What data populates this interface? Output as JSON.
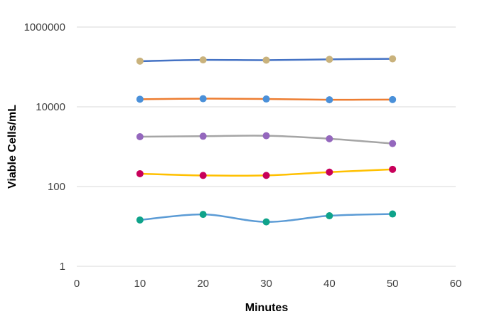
{
  "chart_data": {
    "type": "line",
    "title": "",
    "xlabel": "Minutes",
    "ylabel": "Viable Cells/mL",
    "xlim": [
      0,
      60
    ],
    "xticks": [
      0,
      10,
      20,
      30,
      40,
      50,
      60
    ],
    "xtick_labels": [
      "0",
      "10",
      "20",
      "30",
      "40",
      "50",
      "60"
    ],
    "ylim": [
      1,
      1000000
    ],
    "yscale": "log",
    "yticks": [
      1,
      100,
      10000,
      1000000
    ],
    "ytick_labels": [
      "1",
      "100",
      "10000",
      "1000000"
    ],
    "grid": "horizontal",
    "legend": "none",
    "x": [
      10,
      20,
      30,
      40,
      50
    ],
    "series": [
      {
        "line_color": "#4472C4",
        "marker_color": "#C9B27C",
        "values": [
          140000,
          150000,
          148000,
          155000,
          160000
        ]
      },
      {
        "line_color": "#ED7D31",
        "marker_color": "#4A90D9",
        "values": [
          15500,
          16000,
          15700,
          15000,
          15200
        ]
      },
      {
        "line_color": "#A5A5A5",
        "marker_color": "#9467BD",
        "values": [
          1780,
          1830,
          1880,
          1580,
          1200
        ]
      },
      {
        "line_color": "#FFC000",
        "marker_color": "#C8005A",
        "values": [
          210,
          190,
          190,
          230,
          270
        ]
      },
      {
        "line_color": "#5B9BD5",
        "marker_color": "#0FA38A",
        "values": [
          14.5,
          20,
          13,
          18.5,
          20.5
        ]
      }
    ]
  }
}
